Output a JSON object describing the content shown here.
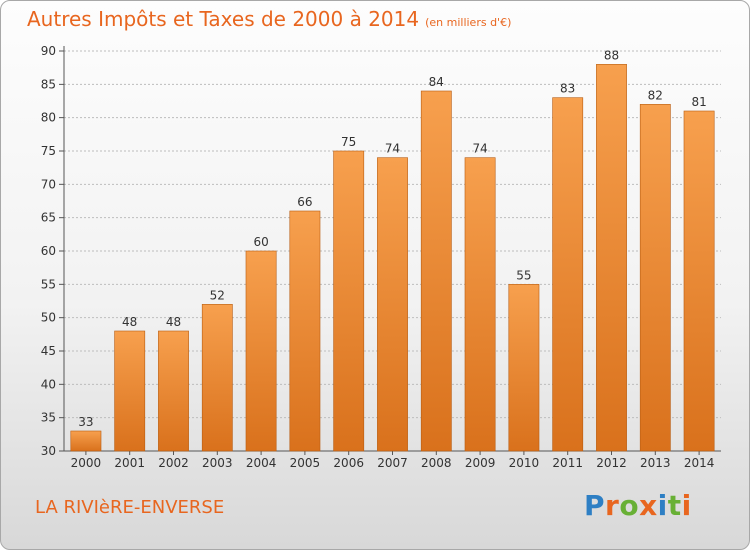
{
  "title": "Autres Impôts et Taxes de 2000 à 2014",
  "unit_note": "(en milliers d'€)",
  "commune": "LA RIVIèRE-ENVERSE",
  "logo": {
    "text": "Proxiti",
    "letters": [
      "P",
      "r",
      "o",
      "x",
      "i",
      "t",
      "i"
    ],
    "colors": [
      "#2e7fc4",
      "#e8661f",
      "#68b035",
      "#e8661f",
      "#2e7fc4",
      "#68b035",
      "#e8661f"
    ]
  },
  "colors": {
    "accent": "#e8661f",
    "bar_top": "#f7a04e",
    "bar_bottom": "#d9711c",
    "bar_edge": "#b85d12"
  },
  "chart_data": {
    "type": "bar",
    "title": "Autres Impôts et Taxes de 2000 à 2014",
    "subtitle": "(en milliers d'€)",
    "xlabel": "",
    "ylabel": "",
    "categories": [
      "2000",
      "2001",
      "2002",
      "2003",
      "2004",
      "2005",
      "2006",
      "2007",
      "2008",
      "2009",
      "2010",
      "2011",
      "2012",
      "2013",
      "2014"
    ],
    "values": [
      33,
      48,
      48,
      52,
      60,
      66,
      75,
      74,
      84,
      74,
      55,
      83,
      88,
      82,
      81
    ],
    "ylim": [
      30,
      90
    ],
    "yticks": [
      30,
      35,
      40,
      45,
      50,
      55,
      60,
      65,
      70,
      75,
      80,
      85,
      90
    ],
    "grid": true,
    "legend": "none"
  }
}
